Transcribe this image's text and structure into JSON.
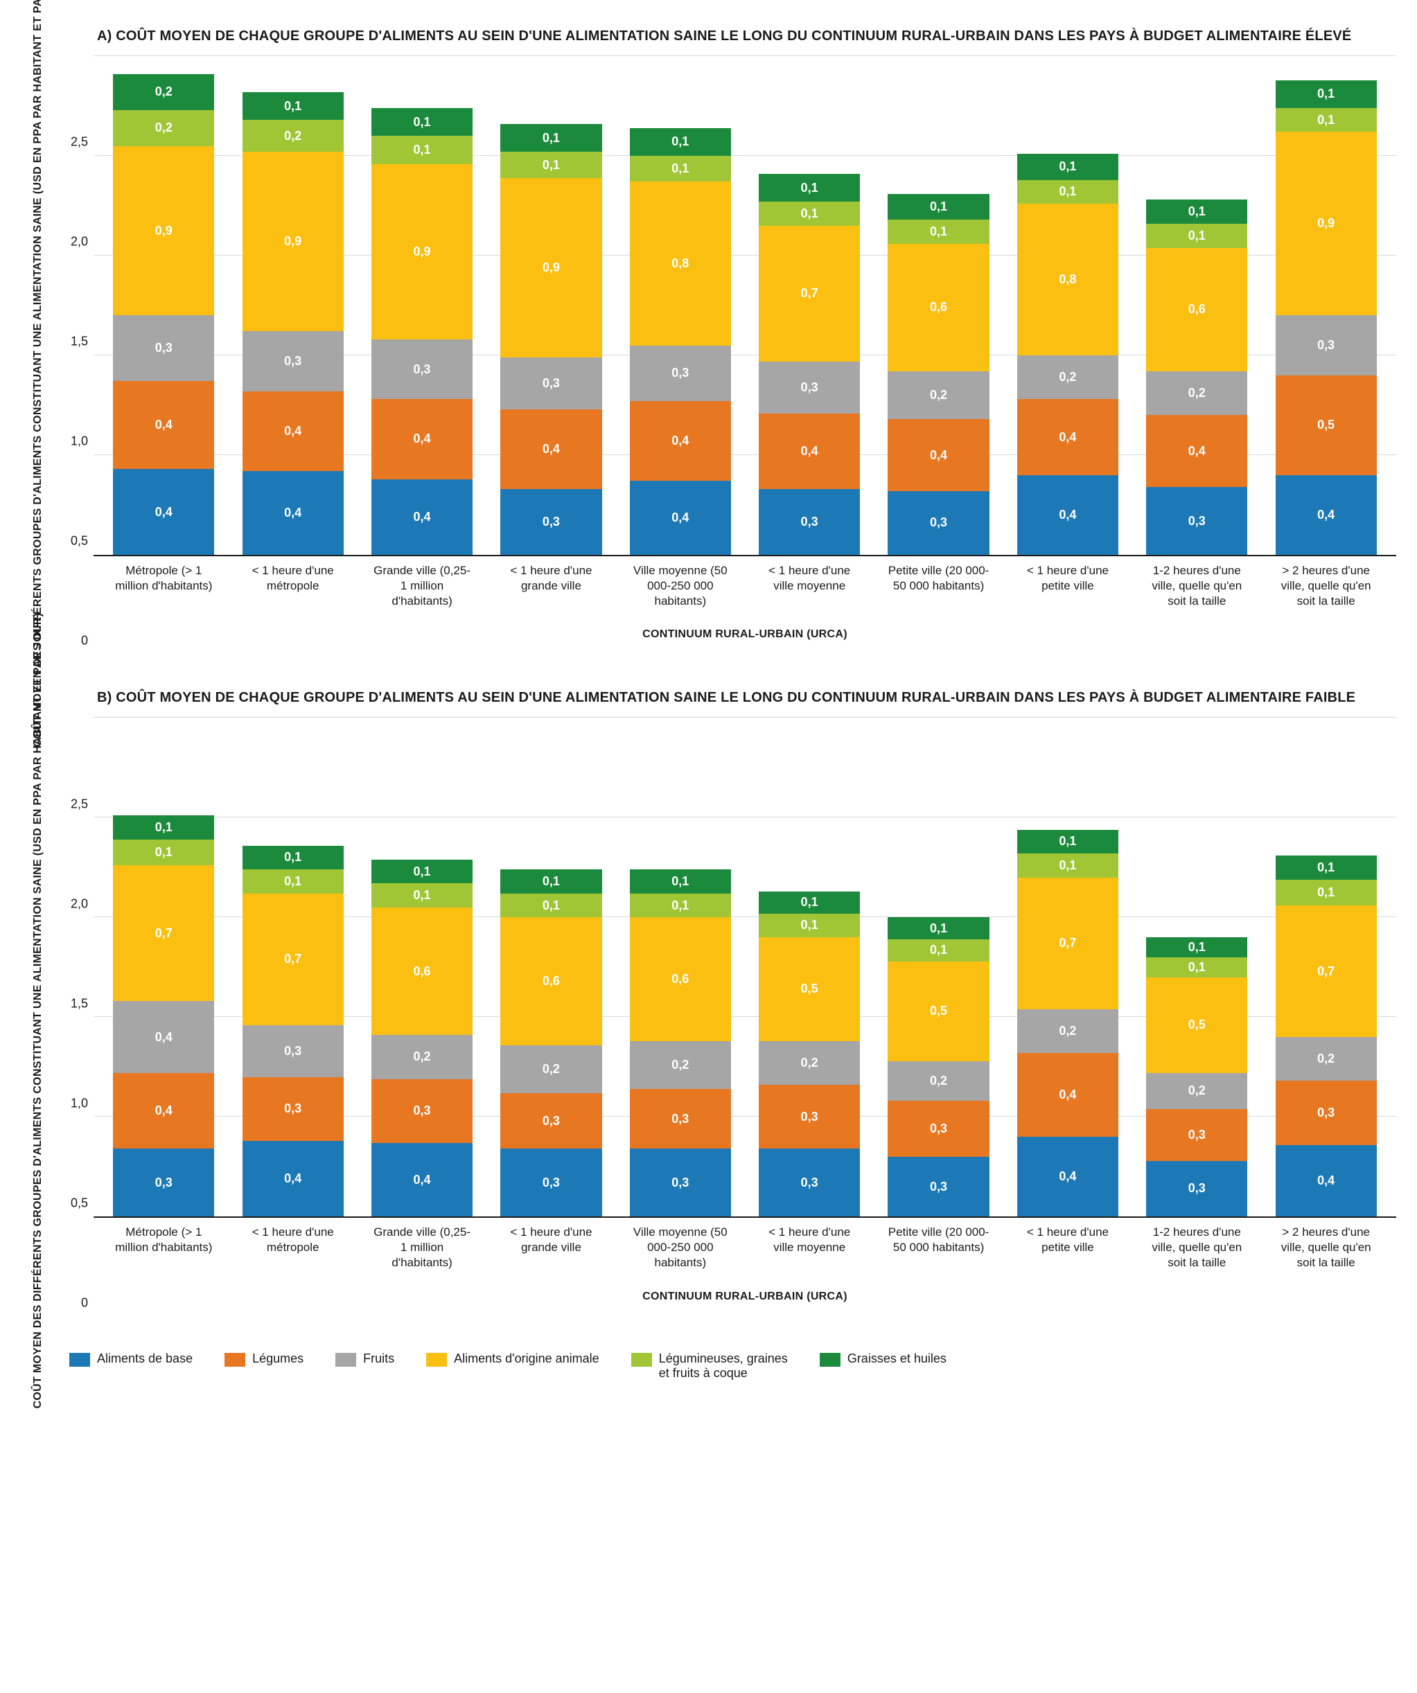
{
  "ylim_max": 2.5,
  "ytick_step": 0.5,
  "yticks": [
    "0",
    "0,5",
    "1,0",
    "1,5",
    "2,0",
    "2,5"
  ],
  "y_axis_label": "COÛT MOYEN DES DIFFÉRENTS GROUPES D'ALIMENTS CONSTITUANT UNE ALIMENTATION SAINE (USD EN PPA PAR HABITANT ET PAR JOUR)",
  "x_axis_title": "CONTINUUM RURAL-URBAIN (URCA)",
  "categories": [
    "Métropole (> 1 million d'habitants)",
    "< 1 heure d'une métropole",
    "Grande ville (0,25-1 million d'habitants)",
    "< 1 heure d'une grande ville",
    "Ville moyenne (50 000-250 000 habitants)",
    "< 1 heure d'une ville moyenne",
    "Petite ville (20 000-50 000 habitants)",
    "< 1 heure d'une petite ville",
    "1-2 heures d'une ville, quelle qu'en soit la taille",
    "> 2 heures d'une ville, quelle qu'en soit la taille"
  ],
  "series": [
    {
      "key": "base",
      "label": "Aliments de base",
      "color": "#1d79b5"
    },
    {
      "key": "legumes",
      "label": "Légumes",
      "color": "#e87722"
    },
    {
      "key": "fruits",
      "label": "Fruits",
      "color": "#a6a6a6"
    },
    {
      "key": "animal",
      "label": "Aliments d'origine animale",
      "color": "#fbbf12"
    },
    {
      "key": "pulses",
      "label": "Légumineuses, graines et fruits à coque",
      "color": "#a0c636"
    },
    {
      "key": "fats",
      "label": "Graisses et huiles",
      "color": "#1c8a3c"
    }
  ],
  "panels": [
    {
      "id": "A",
      "title": "A) COÛT MOYEN DE CHAQUE GROUPE D'ALIMENTS AU SEIN D'UNE ALIMENTATION SAINE LE LONG DU CONTINUUM RURAL-URBAIN DANS LES PAYS À BUDGET ALIMENTAIRE ÉLEVÉ",
      "data": [
        {
          "base": {
            "v": 0.43,
            "l": "0,4"
          },
          "legumes": {
            "v": 0.44,
            "l": "0,4"
          },
          "fruits": {
            "v": 0.33,
            "l": "0,3"
          },
          "animal": {
            "v": 0.85,
            "l": "0,9"
          },
          "pulses": {
            "v": 0.18,
            "l": "0,2"
          },
          "fats": {
            "v": 0.18,
            "l": "0,2"
          }
        },
        {
          "base": {
            "v": 0.42,
            "l": "0,4"
          },
          "legumes": {
            "v": 0.4,
            "l": "0,4"
          },
          "fruits": {
            "v": 0.3,
            "l": "0,3"
          },
          "animal": {
            "v": 0.9,
            "l": "0,9"
          },
          "pulses": {
            "v": 0.16,
            "l": "0,2"
          },
          "fats": {
            "v": 0.14,
            "l": "0,1"
          }
        },
        {
          "base": {
            "v": 0.38,
            "l": "0,4"
          },
          "legumes": {
            "v": 0.4,
            "l": "0,4"
          },
          "fruits": {
            "v": 0.3,
            "l": "0,3"
          },
          "animal": {
            "v": 0.88,
            "l": "0,9"
          },
          "pulses": {
            "v": 0.14,
            "l": "0,1"
          },
          "fats": {
            "v": 0.14,
            "l": "0,1"
          }
        },
        {
          "base": {
            "v": 0.33,
            "l": "0,3"
          },
          "legumes": {
            "v": 0.4,
            "l": "0,4"
          },
          "fruits": {
            "v": 0.26,
            "l": "0,3"
          },
          "animal": {
            "v": 0.9,
            "l": "0,9"
          },
          "pulses": {
            "v": 0.13,
            "l": "0,1"
          },
          "fats": {
            "v": 0.14,
            "l": "0,1"
          }
        },
        {
          "base": {
            "v": 0.37,
            "l": "0,4"
          },
          "legumes": {
            "v": 0.4,
            "l": "0,4"
          },
          "fruits": {
            "v": 0.28,
            "l": "0,3"
          },
          "animal": {
            "v": 0.82,
            "l": "0,8"
          },
          "pulses": {
            "v": 0.13,
            "l": "0,1"
          },
          "fats": {
            "v": 0.14,
            "l": "0,1"
          }
        },
        {
          "base": {
            "v": 0.33,
            "l": "0,3"
          },
          "legumes": {
            "v": 0.38,
            "l": "0,4"
          },
          "fruits": {
            "v": 0.26,
            "l": "0,3"
          },
          "animal": {
            "v": 0.68,
            "l": "0,7"
          },
          "pulses": {
            "v": 0.12,
            "l": "0,1"
          },
          "fats": {
            "v": 0.14,
            "l": "0,1"
          }
        },
        {
          "base": {
            "v": 0.32,
            "l": "0,3"
          },
          "legumes": {
            "v": 0.36,
            "l": "0,4"
          },
          "fruits": {
            "v": 0.24,
            "l": "0,2"
          },
          "animal": {
            "v": 0.64,
            "l": "0,6"
          },
          "pulses": {
            "v": 0.12,
            "l": "0,1"
          },
          "fats": {
            "v": 0.13,
            "l": "0,1"
          }
        },
        {
          "base": {
            "v": 0.4,
            "l": "0,4"
          },
          "legumes": {
            "v": 0.38,
            "l": "0,4"
          },
          "fruits": {
            "v": 0.22,
            "l": "0,2"
          },
          "animal": {
            "v": 0.76,
            "l": "0,8"
          },
          "pulses": {
            "v": 0.12,
            "l": "0,1"
          },
          "fats": {
            "v": 0.13,
            "l": "0,1"
          }
        },
        {
          "base": {
            "v": 0.34,
            "l": "0,3"
          },
          "legumes": {
            "v": 0.36,
            "l": "0,4"
          },
          "fruits": {
            "v": 0.22,
            "l": "0,2"
          },
          "animal": {
            "v": 0.62,
            "l": "0,6"
          },
          "pulses": {
            "v": 0.12,
            "l": "0,1"
          },
          "fats": {
            "v": 0.12,
            "l": "0,1"
          }
        },
        {
          "base": {
            "v": 0.4,
            "l": "0,4"
          },
          "legumes": {
            "v": 0.5,
            "l": "0,5"
          },
          "fruits": {
            "v": 0.3,
            "l": "0,3"
          },
          "animal": {
            "v": 0.92,
            "l": "0,9"
          },
          "pulses": {
            "v": 0.12,
            "l": "0,1"
          },
          "fats": {
            "v": 0.14,
            "l": "0,1"
          }
        }
      ]
    },
    {
      "id": "B",
      "title": "B) COÛT MOYEN DE CHAQUE GROUPE D'ALIMENTS AU SEIN D'UNE ALIMENTATION SAINE LE LONG DU CONTINUUM RURAL-URBAIN DANS LES PAYS À BUDGET ALIMENTAIRE FAIBLE",
      "data": [
        {
          "base": {
            "v": 0.34,
            "l": "0,3"
          },
          "legumes": {
            "v": 0.38,
            "l": "0,4"
          },
          "fruits": {
            "v": 0.36,
            "l": "0,4"
          },
          "animal": {
            "v": 0.68,
            "l": "0,7"
          },
          "pulses": {
            "v": 0.13,
            "l": "0,1"
          },
          "fats": {
            "v": 0.12,
            "l": "0,1"
          }
        },
        {
          "base": {
            "v": 0.38,
            "l": "0,4"
          },
          "legumes": {
            "v": 0.32,
            "l": "0,3"
          },
          "fruits": {
            "v": 0.26,
            "l": "0,3"
          },
          "animal": {
            "v": 0.66,
            "l": "0,7"
          },
          "pulses": {
            "v": 0.12,
            "l": "0,1"
          },
          "fats": {
            "v": 0.12,
            "l": "0,1"
          }
        },
        {
          "base": {
            "v": 0.37,
            "l": "0,4"
          },
          "legumes": {
            "v": 0.32,
            "l": "0,3"
          },
          "fruits": {
            "v": 0.22,
            "l": "0,2"
          },
          "animal": {
            "v": 0.64,
            "l": "0,6"
          },
          "pulses": {
            "v": 0.12,
            "l": "0,1"
          },
          "fats": {
            "v": 0.12,
            "l": "0,1"
          }
        },
        {
          "base": {
            "v": 0.34,
            "l": "0,3"
          },
          "legumes": {
            "v": 0.28,
            "l": "0,3"
          },
          "fruits": {
            "v": 0.24,
            "l": "0,2"
          },
          "animal": {
            "v": 0.64,
            "l": "0,6"
          },
          "pulses": {
            "v": 0.12,
            "l": "0,1"
          },
          "fats": {
            "v": 0.12,
            "l": "0,1"
          }
        },
        {
          "base": {
            "v": 0.34,
            "l": "0,3"
          },
          "legumes": {
            "v": 0.3,
            "l": "0,3"
          },
          "fruits": {
            "v": 0.24,
            "l": "0,2"
          },
          "animal": {
            "v": 0.62,
            "l": "0,6"
          },
          "pulses": {
            "v": 0.12,
            "l": "0,1"
          },
          "fats": {
            "v": 0.12,
            "l": "0,1"
          }
        },
        {
          "base": {
            "v": 0.34,
            "l": "0,3"
          },
          "legumes": {
            "v": 0.32,
            "l": "0,3"
          },
          "fruits": {
            "v": 0.22,
            "l": "0,2"
          },
          "animal": {
            "v": 0.52,
            "l": "0,5"
          },
          "pulses": {
            "v": 0.12,
            "l": "0,1"
          },
          "fats": {
            "v": 0.11,
            "l": "0,1"
          }
        },
        {
          "base": {
            "v": 0.3,
            "l": "0,3"
          },
          "legumes": {
            "v": 0.28,
            "l": "0,3"
          },
          "fruits": {
            "v": 0.2,
            "l": "0,2"
          },
          "animal": {
            "v": 0.5,
            "l": "0,5"
          },
          "pulses": {
            "v": 0.11,
            "l": "0,1"
          },
          "fats": {
            "v": 0.11,
            "l": "0,1"
          }
        },
        {
          "base": {
            "v": 0.4,
            "l": "0,4"
          },
          "legumes": {
            "v": 0.42,
            "l": "0,4"
          },
          "fruits": {
            "v": 0.22,
            "l": "0,2"
          },
          "animal": {
            "v": 0.66,
            "l": "0,7"
          },
          "pulses": {
            "v": 0.12,
            "l": "0,1"
          },
          "fats": {
            "v": 0.12,
            "l": "0,1"
          }
        },
        {
          "base": {
            "v": 0.28,
            "l": "0,3"
          },
          "legumes": {
            "v": 0.26,
            "l": "0,3"
          },
          "fruits": {
            "v": 0.18,
            "l": "0,2"
          },
          "animal": {
            "v": 0.48,
            "l": "0,5"
          },
          "pulses": {
            "v": 0.1,
            "l": "0,1"
          },
          "fats": {
            "v": 0.1,
            "l": "0,1"
          }
        },
        {
          "base": {
            "v": 0.36,
            "l": "0,4"
          },
          "legumes": {
            "v": 0.32,
            "l": "0,3"
          },
          "fruits": {
            "v": 0.22,
            "l": "0,2"
          },
          "animal": {
            "v": 0.66,
            "l": "0,7"
          },
          "pulses": {
            "v": 0.13,
            "l": "0,1"
          },
          "fats": {
            "v": 0.12,
            "l": "0,1"
          }
        }
      ]
    }
  ]
}
